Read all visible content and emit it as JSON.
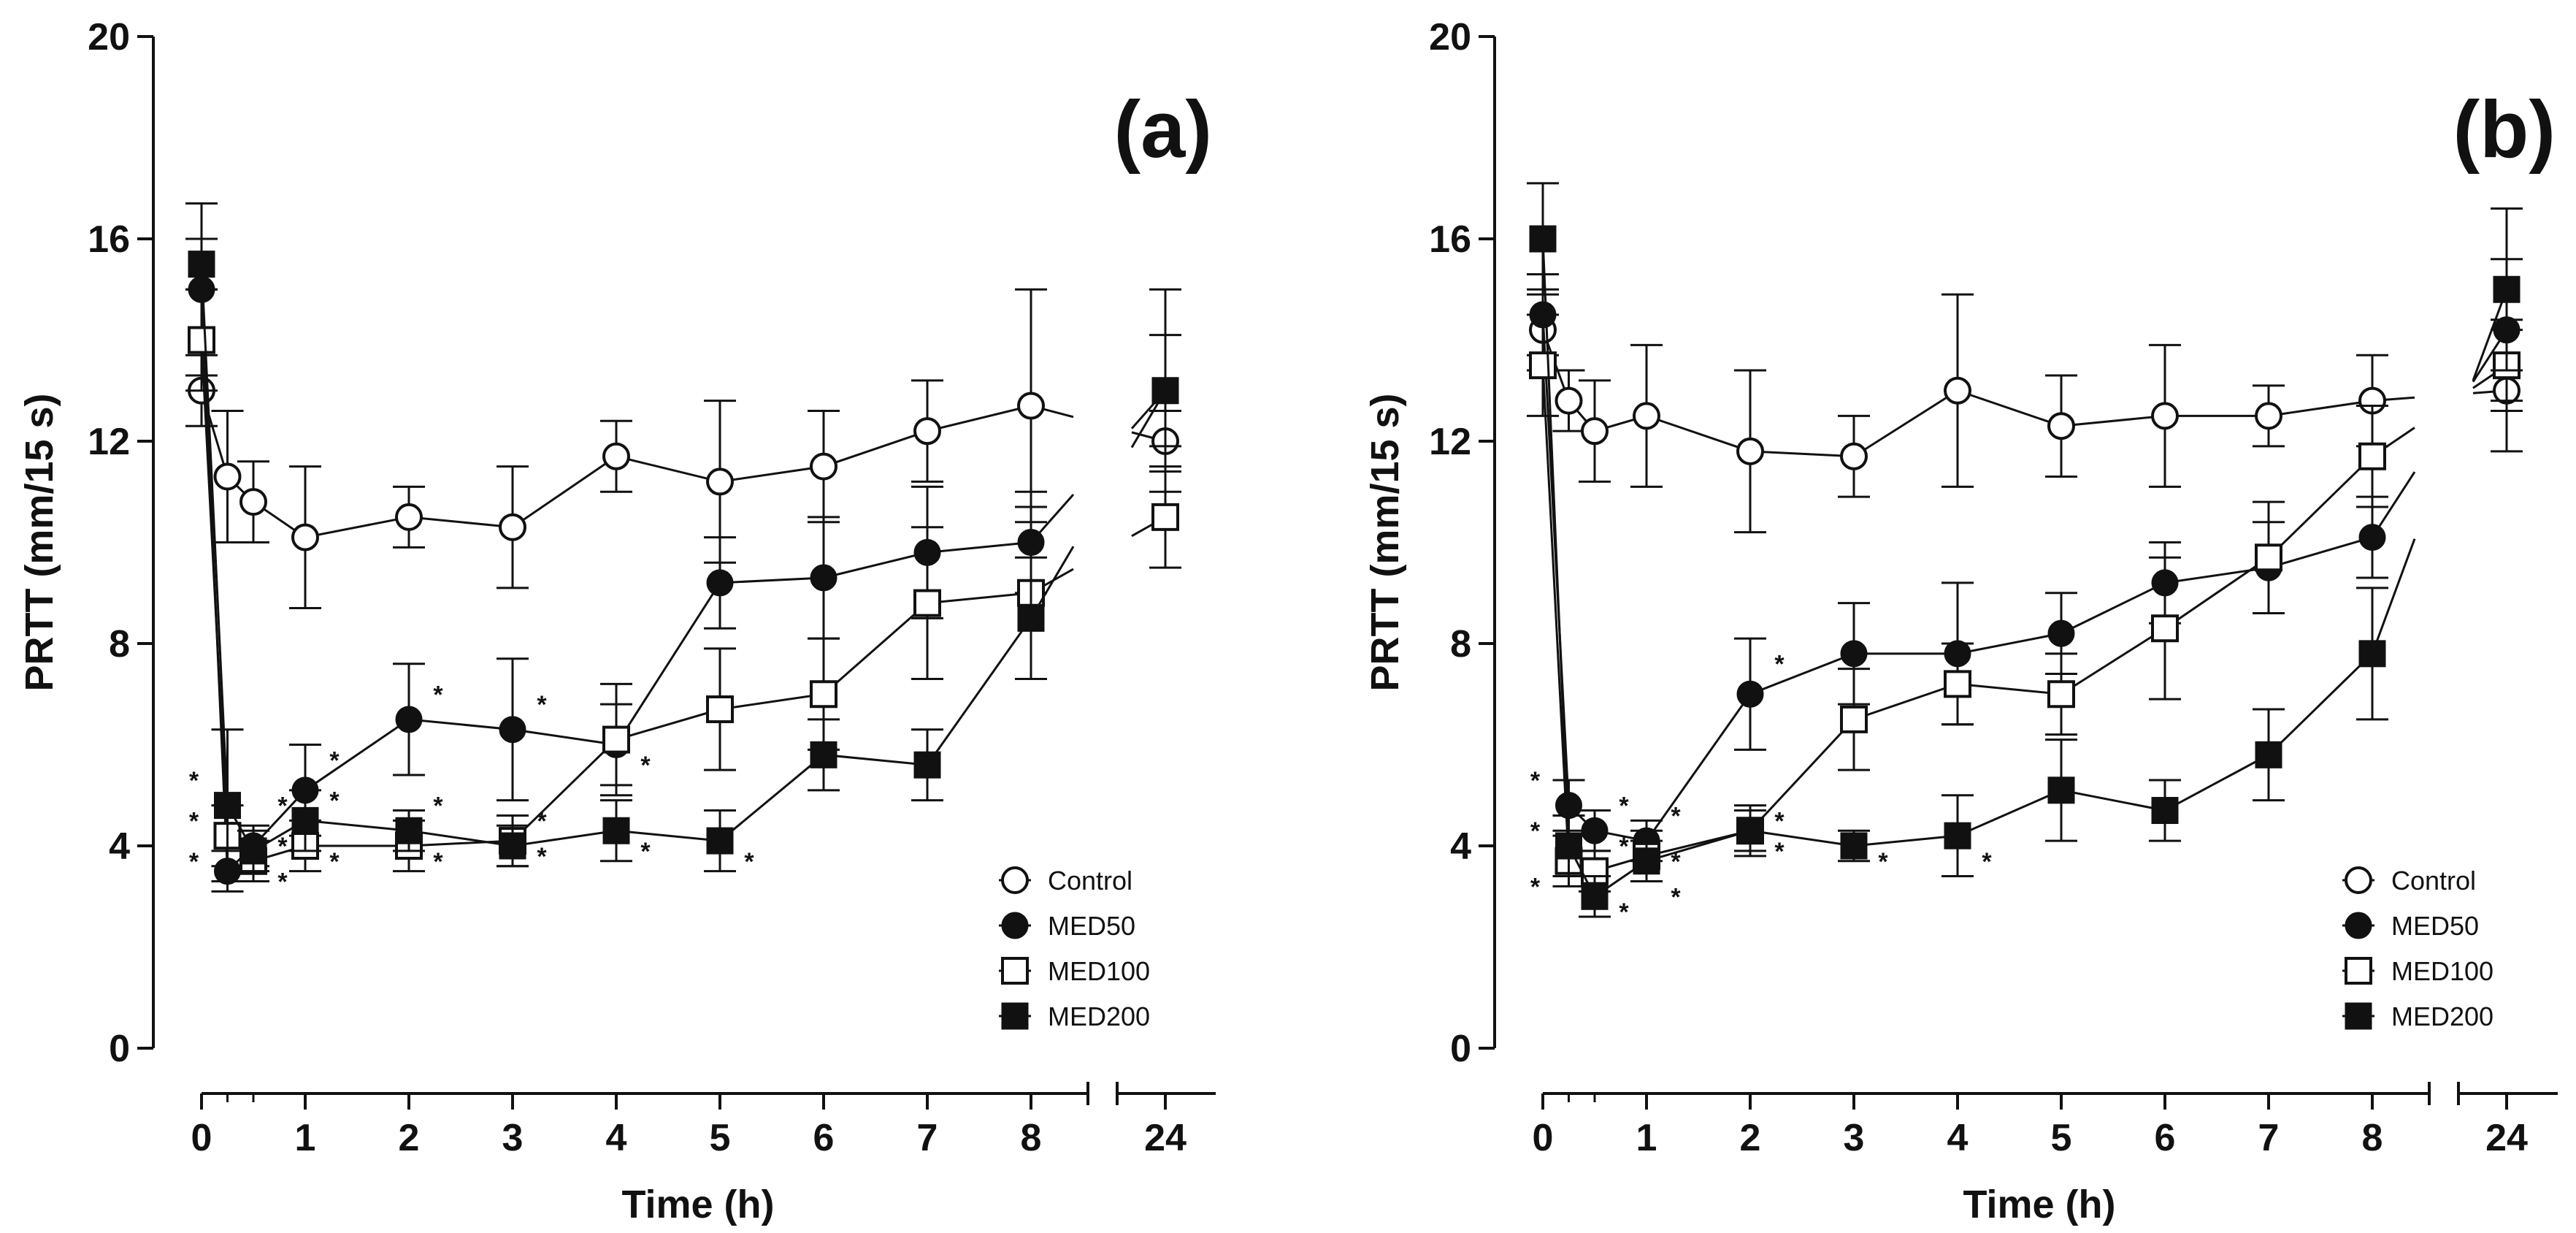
{
  "figure": {
    "ylabel": "PRTT (mm/15 s)",
    "xlabel": "Time (h)",
    "colors": {
      "ink": "#111111",
      "background": "#ffffff"
    }
  },
  "chart_data": [
    {
      "type": "line",
      "panel_label": "(a)",
      "title": "",
      "xlabel": "Time (h)",
      "ylabel": "PRTT (mm/15 s)",
      "ylim": [
        0,
        20
      ],
      "yticks": [
        0,
        4,
        8,
        12,
        16,
        20
      ],
      "xticks": [
        "0",
        "1",
        "2",
        "3",
        "4",
        "5",
        "6",
        "7",
        "8",
        "24"
      ],
      "x_axis_break": "between 8 and 24",
      "legend_position": "bottom-right",
      "series": [
        {
          "name": "Control",
          "marker": "open-circle",
          "x": [
            0,
            0.25,
            0.5,
            1,
            2,
            3,
            4,
            5,
            6,
            7,
            8,
            24
          ],
          "y": [
            13,
            11.3,
            10.8,
            10.1,
            10.5,
            10.3,
            11.7,
            11.2,
            11.5,
            12.2,
            12.7,
            12
          ],
          "err": [
            0.7,
            1.3,
            0.8,
            1.4,
            0.6,
            1.2,
            0.7,
            1.6,
            1.1,
            1.0,
            2.3,
            0.6
          ]
        },
        {
          "name": "MED50",
          "marker": "filled-circle",
          "x": [
            0,
            0.25,
            0.5,
            1,
            2,
            3,
            4,
            5,
            6,
            7,
            8,
            24
          ],
          "y": [
            15,
            3.5,
            4,
            5.1,
            6.5,
            6.3,
            6,
            9.2,
            9.3,
            9.8,
            10,
            13
          ],
          "err": [
            1.7,
            0.4,
            0.4,
            0.9,
            1.1,
            1.4,
            0.8,
            0.9,
            1.2,
            1.3,
            1.0,
            1.1
          ]
        },
        {
          "name": "MED100",
          "marker": "open-square",
          "x": [
            0,
            0.25,
            0.5,
            1,
            2,
            3,
            4,
            5,
            6,
            7,
            8,
            24
          ],
          "y": [
            14,
            4.2,
            3.7,
            4,
            4,
            4.1,
            6.1,
            6.7,
            7,
            8.8,
            9,
            10.5
          ],
          "err": [
            1.0,
            0.6,
            0.4,
            0.5,
            0.5,
            0.5,
            1.1,
            1.2,
            1.1,
            1.5,
            1.7,
            1.0
          ]
        },
        {
          "name": "MED200",
          "marker": "filled-square",
          "x": [
            0,
            0.25,
            0.5,
            1,
            2,
            3,
            4,
            5,
            6,
            7,
            8,
            24
          ],
          "y": [
            15.5,
            4.8,
            3.9,
            4.5,
            4.3,
            4,
            4.3,
            4.1,
            5.8,
            5.6,
            8.5,
            13
          ],
          "err": [
            0.5,
            1.5,
            0.4,
            0.6,
            0.4,
            0.4,
            0.6,
            0.6,
            0.7,
            0.7,
            1.2,
            2.0
          ]
        }
      ],
      "significance": [
        {
          "x": 0.25,
          "y": 5.3,
          "side": "left",
          "text": "*"
        },
        {
          "x": 0.25,
          "y": 4.5,
          "side": "left",
          "text": "*"
        },
        {
          "x": 0.25,
          "y": 3.7,
          "side": "left",
          "text": "*"
        },
        {
          "x": 0.5,
          "y": 4.8,
          "side": "right",
          "text": "*"
        },
        {
          "x": 0.5,
          "y": 4.0,
          "side": "right",
          "text": "*"
        },
        {
          "x": 0.5,
          "y": 3.3,
          "side": "right",
          "text": "*"
        },
        {
          "x": 1,
          "y": 5.7,
          "side": "right",
          "text": "*"
        },
        {
          "x": 1,
          "y": 4.9,
          "side": "right",
          "text": "*"
        },
        {
          "x": 1,
          "y": 3.7,
          "side": "right",
          "text": "*"
        },
        {
          "x": 2,
          "y": 7.0,
          "side": "right",
          "text": "*"
        },
        {
          "x": 2,
          "y": 4.8,
          "side": "right",
          "text": "*"
        },
        {
          "x": 2,
          "y": 3.7,
          "side": "right",
          "text": "*"
        },
        {
          "x": 3,
          "y": 6.8,
          "side": "right",
          "text": "*"
        },
        {
          "x": 3,
          "y": 4.5,
          "side": "right",
          "text": "*"
        },
        {
          "x": 3,
          "y": 3.8,
          "side": "right",
          "text": "*"
        },
        {
          "x": 4,
          "y": 5.6,
          "side": "right",
          "text": "*"
        },
        {
          "x": 4,
          "y": 3.9,
          "side": "right",
          "text": "*"
        },
        {
          "x": 5,
          "y": 3.7,
          "side": "right",
          "text": "*"
        }
      ]
    },
    {
      "type": "line",
      "panel_label": "(b)",
      "title": "",
      "xlabel": "Time (h)",
      "ylabel": "PRTT (mm/15 s)",
      "ylim": [
        0,
        20
      ],
      "yticks": [
        0,
        4,
        8,
        12,
        16,
        20
      ],
      "xticks": [
        "0",
        "1",
        "2",
        "3",
        "4",
        "5",
        "6",
        "7",
        "8",
        "24"
      ],
      "x_axis_break": "between 8 and 24",
      "legend_position": "bottom-right",
      "series": [
        {
          "name": "Control",
          "marker": "open-circle",
          "x": [
            0,
            0.25,
            0.5,
            1,
            2,
            3,
            4,
            5,
            6,
            7,
            8,
            24
          ],
          "y": [
            14.2,
            12.8,
            12.2,
            12.5,
            11.8,
            11.7,
            13,
            12.3,
            12.5,
            12.5,
            12.8,
            13
          ],
          "err": [
            0.8,
            0.6,
            1.0,
            1.4,
            1.6,
            0.8,
            1.9,
            1.0,
            1.4,
            0.6,
            0.9,
            1.2
          ]
        },
        {
          "name": "MED50",
          "marker": "filled-circle",
          "x": [
            0,
            0.25,
            0.5,
            1,
            2,
            3,
            4,
            5,
            6,
            7,
            8,
            24
          ],
          "y": [
            14.5,
            4.8,
            4.3,
            4.1,
            7,
            7.8,
            7.8,
            8.2,
            9.2,
            9.5,
            10.1,
            14.2
          ],
          "err": [
            0.8,
            0.5,
            0.4,
            0.4,
            1.1,
            1.0,
            1.4,
            0.8,
            0.8,
            0.9,
            0.8,
            1.4
          ]
        },
        {
          "name": "MED100",
          "marker": "open-square",
          "x": [
            0,
            0.25,
            0.5,
            1,
            2,
            3,
            4,
            5,
            6,
            7,
            8,
            24
          ],
          "y": [
            13.5,
            3.7,
            3.5,
            3.8,
            4.3,
            6.5,
            7.2,
            7,
            8.3,
            9.7,
            11.7,
            13.5
          ],
          "err": [
            1.0,
            0.5,
            0.4,
            0.5,
            0.5,
            1.0,
            0.8,
            0.8,
            1.4,
            1.1,
            1.0,
            0.9
          ]
        },
        {
          "name": "MED200",
          "marker": "filled-square",
          "x": [
            0,
            0.25,
            0.5,
            1,
            2,
            3,
            4,
            5,
            6,
            7,
            8,
            24
          ],
          "y": [
            16,
            4,
            3,
            3.7,
            4.3,
            4,
            4.2,
            5.1,
            4.7,
            5.8,
            7.8,
            15
          ],
          "err": [
            1.1,
            0.6,
            0.4,
            0.4,
            0.4,
            0.3,
            0.8,
            1.0,
            0.6,
            0.9,
            1.3,
            1.6
          ]
        }
      ],
      "significance": [
        {
          "x": 0.25,
          "y": 5.3,
          "side": "left",
          "text": "*"
        },
        {
          "x": 0.25,
          "y": 4.3,
          "side": "left",
          "text": "*"
        },
        {
          "x": 0.25,
          "y": 3.2,
          "side": "left",
          "text": "*"
        },
        {
          "x": 0.5,
          "y": 4.8,
          "side": "right",
          "text": "*"
        },
        {
          "x": 0.5,
          "y": 4.0,
          "side": "right",
          "text": "*"
        },
        {
          "x": 0.5,
          "y": 2.7,
          "side": "right",
          "text": "*"
        },
        {
          "x": 1,
          "y": 4.6,
          "side": "right",
          "text": "*"
        },
        {
          "x": 1,
          "y": 3.7,
          "side": "right",
          "text": "*"
        },
        {
          "x": 1,
          "y": 3.0,
          "side": "right",
          "text": "*"
        },
        {
          "x": 2,
          "y": 7.6,
          "side": "right",
          "text": "*"
        },
        {
          "x": 2,
          "y": 4.5,
          "side": "right",
          "text": "*"
        },
        {
          "x": 2,
          "y": 3.9,
          "side": "right",
          "text": "*"
        },
        {
          "x": 3,
          "y": 3.7,
          "side": "right",
          "text": "*"
        },
        {
          "x": 4,
          "y": 3.7,
          "side": "right",
          "text": "*"
        }
      ]
    }
  ]
}
